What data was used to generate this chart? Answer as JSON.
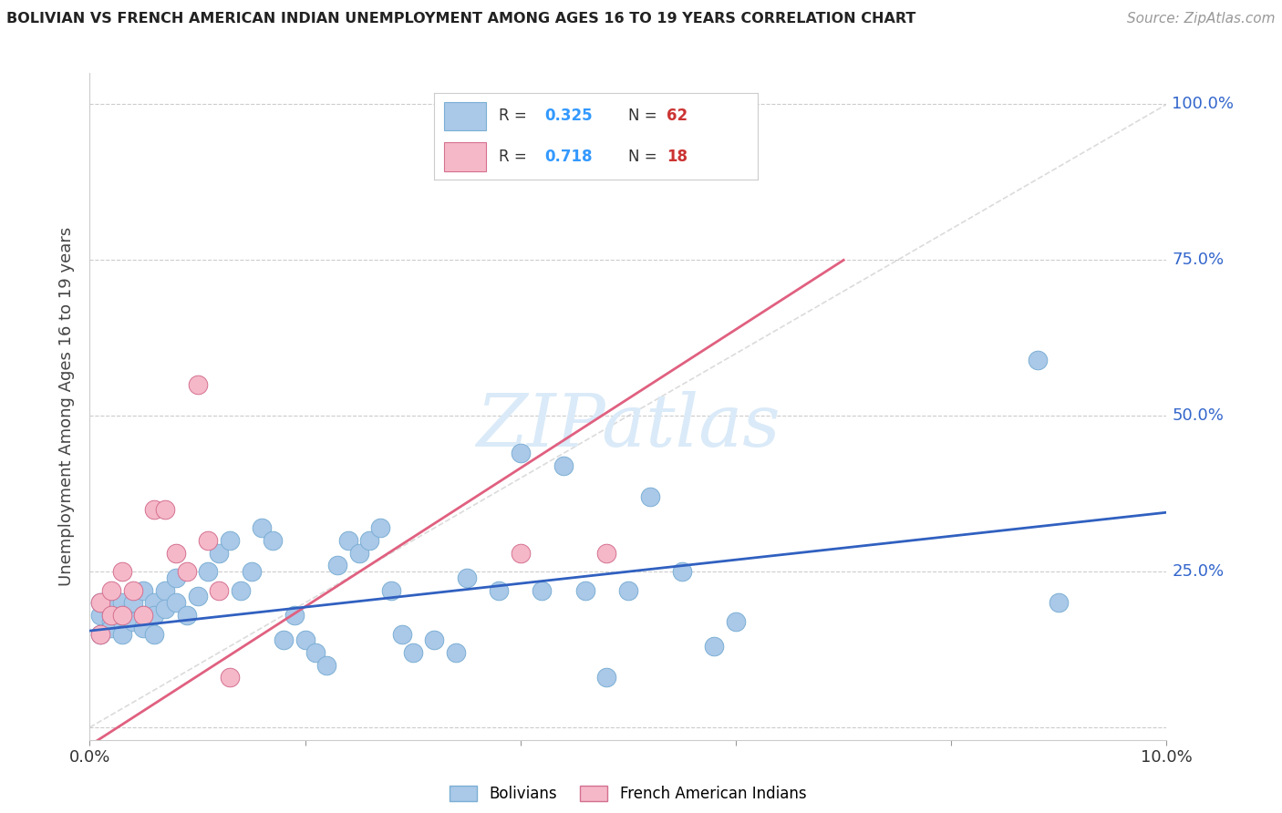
{
  "title": "BOLIVIAN VS FRENCH AMERICAN INDIAN UNEMPLOYMENT AMONG AGES 16 TO 19 YEARS CORRELATION CHART",
  "source": "Source: ZipAtlas.com",
  "ylabel": "Unemployment Among Ages 16 to 19 years",
  "xlim": [
    0.0,
    0.1
  ],
  "ylim": [
    -0.02,
    1.05
  ],
  "color_blue": "#aac8e8",
  "color_blue_edge": "#7bafd4",
  "color_blue_line": "#3060c0",
  "color_pink": "#f5b8c8",
  "color_pink_edge": "#d47090",
  "color_pink_line": "#e06080",
  "color_r_text": "#3399ff",
  "color_n_label": "#333333",
  "color_n_value": "#cc3333",
  "watermark_color": "#daeaf8",
  "grid_color": "#cccccc",
  "diag_color": "#cccccc",
  "blue_x": [
    0.001,
    0.001,
    0.001,
    0.002,
    0.002,
    0.002,
    0.002,
    0.003,
    0.003,
    0.003,
    0.003,
    0.004,
    0.004,
    0.004,
    0.005,
    0.005,
    0.005,
    0.006,
    0.006,
    0.006,
    0.007,
    0.007,
    0.008,
    0.008,
    0.009,
    0.01,
    0.011,
    0.012,
    0.013,
    0.014,
    0.015,
    0.016,
    0.017,
    0.018,
    0.019,
    0.02,
    0.021,
    0.022,
    0.023,
    0.024,
    0.025,
    0.026,
    0.027,
    0.028,
    0.029,
    0.03,
    0.032,
    0.034,
    0.035,
    0.038,
    0.04,
    0.042,
    0.044,
    0.046,
    0.048,
    0.05,
    0.052,
    0.055,
    0.058,
    0.06,
    0.088,
    0.09
  ],
  "blue_y": [
    0.18,
    0.2,
    0.15,
    0.18,
    0.17,
    0.16,
    0.19,
    0.2,
    0.17,
    0.18,
    0.15,
    0.19,
    0.17,
    0.2,
    0.18,
    0.16,
    0.22,
    0.2,
    0.18,
    0.15,
    0.22,
    0.19,
    0.24,
    0.2,
    0.18,
    0.21,
    0.25,
    0.28,
    0.3,
    0.22,
    0.25,
    0.32,
    0.3,
    0.14,
    0.18,
    0.14,
    0.12,
    0.1,
    0.26,
    0.3,
    0.28,
    0.3,
    0.32,
    0.22,
    0.15,
    0.12,
    0.14,
    0.12,
    0.24,
    0.22,
    0.44,
    0.22,
    0.42,
    0.22,
    0.08,
    0.22,
    0.37,
    0.25,
    0.13,
    0.17,
    0.59,
    0.2
  ],
  "pink_x": [
    0.001,
    0.001,
    0.002,
    0.002,
    0.003,
    0.003,
    0.004,
    0.005,
    0.006,
    0.007,
    0.008,
    0.009,
    0.01,
    0.011,
    0.012,
    0.013,
    0.04,
    0.048
  ],
  "pink_y": [
    0.2,
    0.15,
    0.22,
    0.18,
    0.25,
    0.18,
    0.22,
    0.18,
    0.35,
    0.35,
    0.28,
    0.25,
    0.55,
    0.3,
    0.22,
    0.08,
    0.28,
    0.28
  ],
  "blue_line_x": [
    0.0,
    0.1
  ],
  "blue_line_y": [
    0.155,
    0.345
  ],
  "pink_line_x": [
    -0.001,
    0.07
  ],
  "pink_line_y": [
    -0.04,
    0.75
  ],
  "diag_line_x": [
    0.0,
    0.1
  ],
  "diag_line_y": [
    0.0,
    1.0
  ],
  "background_color": "#ffffff"
}
